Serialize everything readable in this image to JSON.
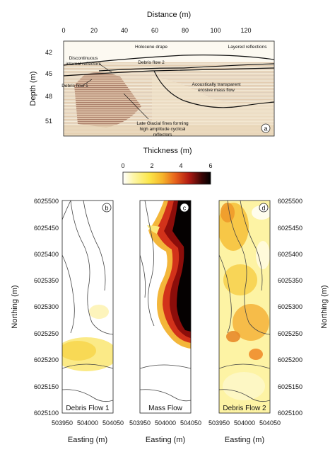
{
  "figure": {
    "top_panel": {
      "x_axis_label": "Distance (m)",
      "y_axis_label": "Depth (m)",
      "x_ticks": [
        "0",
        "20",
        "40",
        "60",
        "80",
        "100",
        "120"
      ],
      "y_ticks": [
        "42",
        "45",
        "48",
        "51"
      ],
      "panel_letter": "a",
      "annotations": [
        "Holocene drape",
        "Layered reflections",
        "Discontinuous",
        "internal reflectors",
        "Debris flow 2",
        "Debris flow 1",
        "Acoustically transparent",
        "erosive mass flow",
        "Late Glacial fines forming",
        "high amplitude cyclical",
        "reflectors"
      ]
    },
    "colorbar": {
      "title": "Thickness (m)",
      "ticks": [
        "0",
        "2",
        "4",
        "6"
      ],
      "colors": [
        "#ffffff",
        "#fdf6a8",
        "#fbe64a",
        "#f6b52c",
        "#e7611b",
        "#b21a12",
        "#3a0505",
        "#000000"
      ]
    },
    "maps": {
      "y_axis_label": "Northing (m)",
      "x_axis_label": "Easting (m)",
      "northing_ticks": [
        "6025500",
        "6025450",
        "6025400",
        "6025350",
        "6025300",
        "6025250",
        "6025200",
        "6025150",
        "6025100"
      ],
      "easting_ticks": [
        "503950",
        "504000",
        "504050"
      ],
      "panels": [
        {
          "letter": "b",
          "title": "Debris Flow 1"
        },
        {
          "letter": "c",
          "title": "Mass Flow"
        },
        {
          "letter": "d",
          "title": "Debris Flow 2"
        }
      ]
    }
  }
}
